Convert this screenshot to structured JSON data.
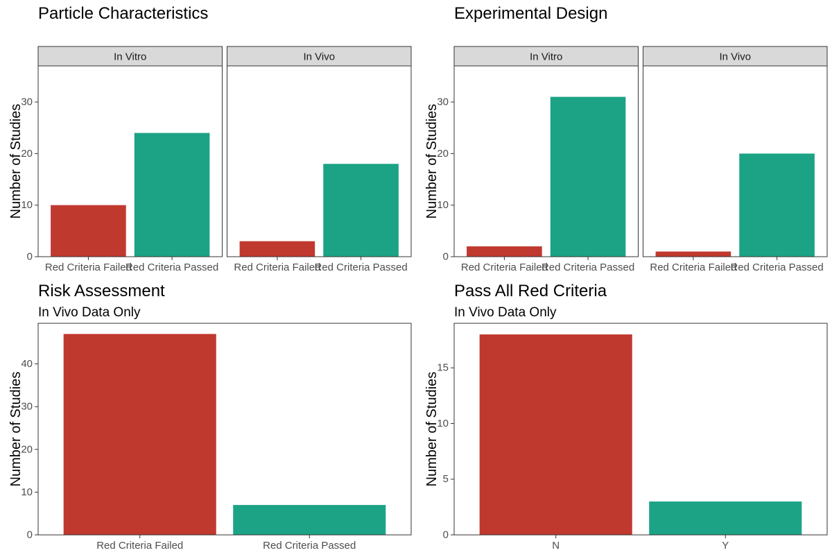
{
  "colors": {
    "failed": "#c0392f",
    "passed": "#1ca386",
    "fail_n": "#c0392f",
    "pass_y": "#1ca386"
  },
  "chart_data": [
    {
      "id": "particle",
      "type": "bar",
      "title": "Particle Characteristics",
      "subtitle": "",
      "ylabel": "Number of Studies",
      "ylim": [
        0,
        37
      ],
      "yticks": [
        0,
        10,
        20,
        30
      ],
      "categories": [
        "Red Criteria Failed",
        "Red Criteria Passed"
      ],
      "facets": [
        {
          "label": "In Vitro",
          "values": [
            10,
            24
          ]
        },
        {
          "label": "In Vivo",
          "values": [
            3,
            18
          ]
        }
      ]
    },
    {
      "id": "design",
      "type": "bar",
      "title": "Experimental Design",
      "subtitle": "",
      "ylabel": "Number of Studies",
      "ylim": [
        0,
        37
      ],
      "yticks": [
        0,
        10,
        20,
        30
      ],
      "categories": [
        "Red Criteria Failed",
        "Red Criteria Passed"
      ],
      "facets": [
        {
          "label": "In Vitro",
          "values": [
            2,
            31
          ]
        },
        {
          "label": "In Vivo",
          "values": [
            1,
            20
          ]
        }
      ]
    },
    {
      "id": "risk",
      "type": "bar",
      "title": "Risk Assessment",
      "subtitle": "In Vivo Data Only",
      "ylabel": "Number of Studies",
      "ylim": [
        0,
        49.5
      ],
      "yticks": [
        0,
        10,
        20,
        30,
        40
      ],
      "categories": [
        "Red Criteria Failed",
        "Red Criteria Passed"
      ],
      "facets": [
        {
          "label": "",
          "values": [
            47,
            7
          ]
        }
      ]
    },
    {
      "id": "passall",
      "type": "bar",
      "title": "Pass All Red Criteria",
      "subtitle": "In Vivo Data Only",
      "ylabel": "Number of Studies",
      "ylim": [
        0,
        19
      ],
      "yticks": [
        0,
        5,
        10,
        15
      ],
      "categories": [
        "N",
        "Y"
      ],
      "facets": [
        {
          "label": "",
          "values": [
            18,
            3
          ]
        }
      ]
    }
  ]
}
